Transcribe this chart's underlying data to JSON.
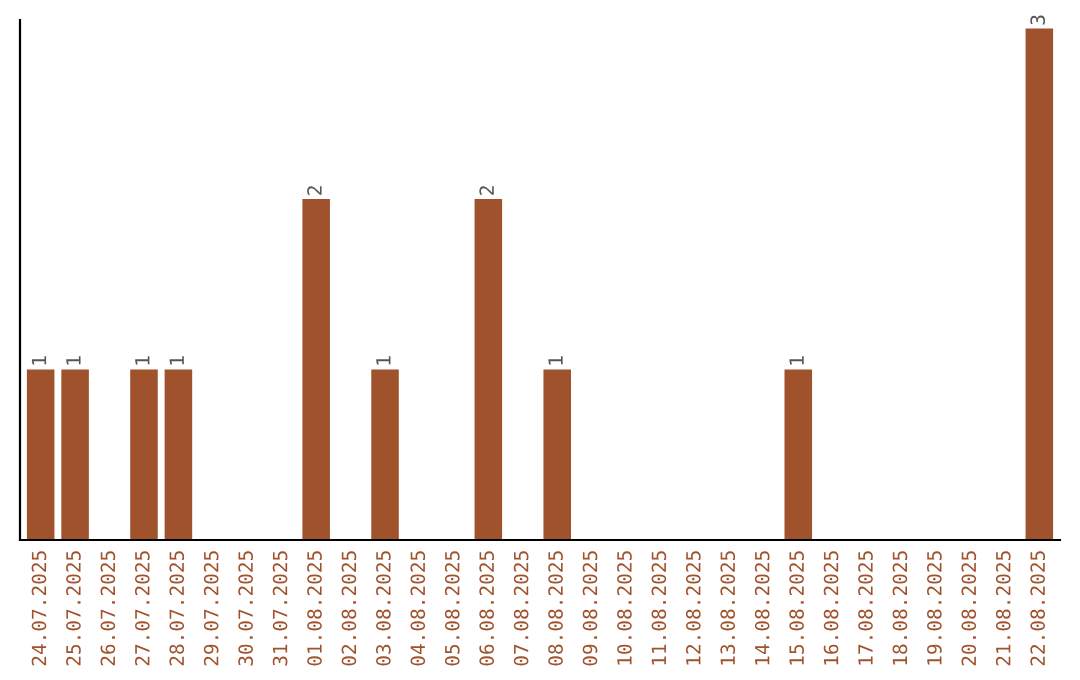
{
  "chart_data": {
    "type": "bar",
    "categories": [
      "24.07.2025",
      "25.07.2025",
      "26.07.2025",
      "27.07.2025",
      "28.07.2025",
      "29.07.2025",
      "30.07.2025",
      "31.07.2025",
      "01.08.2025",
      "02.08.2025",
      "03.08.2025",
      "04.08.2025",
      "05.08.2025",
      "06.08.2025",
      "07.08.2025",
      "08.08.2025",
      "09.08.2025",
      "10.08.2025",
      "11.08.2025",
      "12.08.2025",
      "13.08.2025",
      "14.08.2025",
      "15.08.2025",
      "16.08.2025",
      "17.08.2025",
      "18.08.2025",
      "19.08.2025",
      "20.08.2025",
      "21.08.2025",
      "22.08.2025"
    ],
    "values": [
      1,
      1,
      0,
      1,
      1,
      0,
      0,
      0,
      2,
      0,
      1,
      0,
      0,
      2,
      0,
      1,
      0,
      0,
      0,
      0,
      0,
      0,
      1,
      0,
      0,
      0,
      0,
      0,
      0,
      3
    ],
    "value_labels": [
      "1",
      "1",
      null,
      "1",
      "1",
      null,
      null,
      null,
      "2",
      null,
      "1",
      null,
      null,
      "2",
      null,
      "1",
      null,
      null,
      null,
      null,
      null,
      null,
      "1",
      null,
      null,
      null,
      null,
      null,
      null,
      "3"
    ],
    "color": "#a0522d",
    "ylim": [
      0,
      3.05
    ],
    "tick_labels": "x",
    "grid": false
  }
}
